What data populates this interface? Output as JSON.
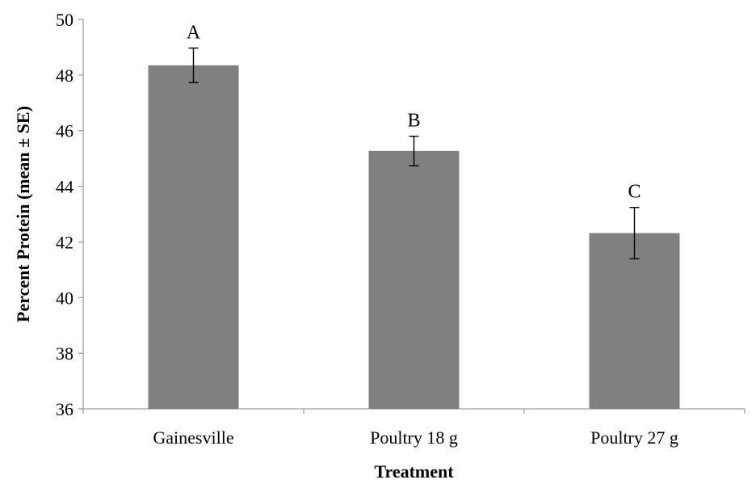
{
  "chart_data": {
    "type": "bar",
    "title": "",
    "xlabel": "Treatment",
    "ylabel": "Percent Protein (mean ± SE)",
    "ylim": [
      36,
      50
    ],
    "yticks": [
      36,
      38,
      40,
      42,
      44,
      46,
      48,
      50
    ],
    "categories": [
      "Gainesville",
      "Poultry 18 g",
      "Poultry 27 g"
    ],
    "values": [
      48.35,
      45.27,
      42.32
    ],
    "errors": [
      0.62,
      0.53,
      0.92
    ],
    "significance_labels": [
      "A",
      "B",
      "C"
    ],
    "bar_color": "#808080",
    "grid": false,
    "legend": "none"
  }
}
